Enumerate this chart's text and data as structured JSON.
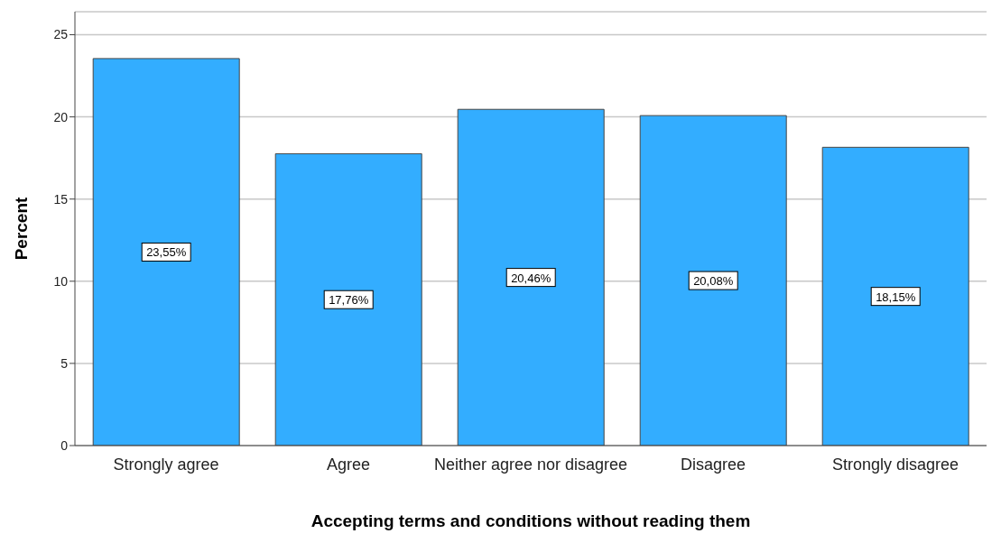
{
  "chart_data": {
    "type": "bar",
    "xlabel": "Accepting terms and conditions without reading them",
    "ylabel": "Percent",
    "categories": [
      "Strongly agree",
      "Agree",
      "Neither agree nor disagree",
      "Disagree",
      "Strongly disagree"
    ],
    "values": [
      23.55,
      17.76,
      20.46,
      20.08,
      18.15
    ],
    "value_labels": [
      "23,55%",
      "17,76%",
      "20,46%",
      "20,08%",
      "18,15%"
    ],
    "color": "#33adff",
    "ylim": [
      0,
      26.4
    ],
    "yticks": [
      0,
      5,
      10,
      15,
      20,
      25
    ],
    "grid": "y"
  }
}
